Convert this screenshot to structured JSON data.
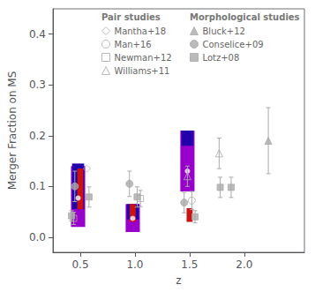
{
  "chart_data": {
    "type": "scatter",
    "xlabel": "z",
    "ylabel": "Merger Fraction on MS",
    "xlim": [
      0.25,
      2.55
    ],
    "ylim": [
      -0.03,
      0.45
    ],
    "xticks": [
      0.5,
      {
        "value": 1.0,
        "label": "1.0"
      },
      1.5,
      {
        "value": 2.0,
        "label": "2.0"
      }
    ],
    "yticks": [
      {
        "value": 0.0,
        "label": "0.0"
      },
      0.1,
      0.2,
      0.3,
      0.4
    ],
    "grid": false,
    "boxes": [
      {
        "x": 0.48,
        "width": 0.13,
        "y_low": 0.02,
        "y_high": 0.14,
        "color": "#9900cc"
      },
      {
        "x": 0.48,
        "width": 0.11,
        "y_low": 0.055,
        "y_high": 0.145,
        "color": "#2200aa"
      },
      {
        "x": 0.5,
        "width": 0.055,
        "y_low": 0.055,
        "y_high": 0.135,
        "color": "#cc1111"
      },
      {
        "x": 0.98,
        "width": 0.13,
        "y_low": 0.01,
        "y_high": 0.065,
        "color": "#9900cc"
      },
      {
        "x": 0.98,
        "width": 0.11,
        "y_low": 0.035,
        "y_high": 0.065,
        "color": "#2200aa"
      },
      {
        "x": 0.98,
        "width": 0.055,
        "y_low": 0.03,
        "y_high": 0.065,
        "color": "#cc1111"
      },
      {
        "x": 1.48,
        "width": 0.13,
        "y_low": 0.09,
        "y_high": 0.21,
        "color": "#9900cc"
      },
      {
        "x": 1.48,
        "width": 0.11,
        "y_low": 0.18,
        "y_high": 0.21,
        "color": "#2200aa"
      },
      {
        "x": 1.5,
        "width": 0.055,
        "y_low": 0.03,
        "y_high": 0.057,
        "color": "#cc1111"
      }
    ],
    "dots": {
      "color": "#ffffff",
      "x": [
        0.48,
        0.98,
        1.48
      ],
      "values": [
        0.077,
        0.037,
        0.13
      ]
    },
    "series": [
      {
        "name": "Mantha+18",
        "group": "Pair studies",
        "marker": "open_diamond",
        "color": "#aaaaaa",
        "x": [
          0.56
        ],
        "values": [
          0.135
        ],
        "yerr_low": [
          0.0
        ],
        "yerr_high": [
          0.0
        ]
      },
      {
        "name": "Man+16",
        "group": "Pair studies",
        "marker": "open_circle",
        "color": "#aaaaaa",
        "x": [
          1.52
        ],
        "values": [
          0.072
        ],
        "yerr_low": [
          0.018
        ],
        "yerr_high": [
          0.018
        ]
      },
      {
        "name": "Newman+12",
        "group": "Pair studies",
        "marker": "open_square",
        "color": "#aaaaaa",
        "x": [
          0.44,
          1.05
        ],
        "values": [
          0.037,
          0.076
        ],
        "yerr_low": [
          0.012,
          0.016
        ],
        "yerr_high": [
          0.012,
          0.016
        ]
      },
      {
        "name": "Williams+11",
        "group": "Pair studies",
        "marker": "open_triangle",
        "color": "#aaaaaa",
        "x": [
          1.48,
          1.77
        ],
        "values": [
          0.12,
          0.165
        ],
        "yerr_low": [
          0.02,
          0.03
        ],
        "yerr_high": [
          0.02,
          0.03
        ]
      },
      {
        "name": "Bluck+12",
        "group": "Morphological studies",
        "marker": "filled_triangle",
        "color": "#aaaaaa",
        "x": [
          2.22
        ],
        "values": [
          0.19
        ],
        "yerr_low": [
          0.065
        ],
        "yerr_high": [
          0.065
        ]
      },
      {
        "name": "Conselice+09",
        "group": "Morphological studies",
        "marker": "filled_circle",
        "color": "#aaaaaa",
        "x": [
          0.45,
          0.95,
          1.45
        ],
        "values": [
          0.1,
          0.105,
          0.068
        ],
        "yerr_low": [
          0.03,
          0.025,
          0.02
        ],
        "yerr_high": [
          0.03,
          0.025,
          0.02
        ]
      },
      {
        "name": "Lotz+08",
        "group": "Morphological studies",
        "marker": "filled_square",
        "color": "#aaaaaa",
        "x": [
          0.42,
          0.58,
          1.02,
          1.55,
          1.78,
          1.88
        ],
        "values": [
          0.042,
          0.079,
          0.079,
          0.04,
          0.098,
          0.098
        ],
        "yerr_low": [
          0.01,
          0.02,
          0.02,
          0.012,
          0.02,
          0.02
        ],
        "yerr_high": [
          0.01,
          0.02,
          0.02,
          0.012,
          0.02,
          0.02
        ]
      }
    ]
  }
}
